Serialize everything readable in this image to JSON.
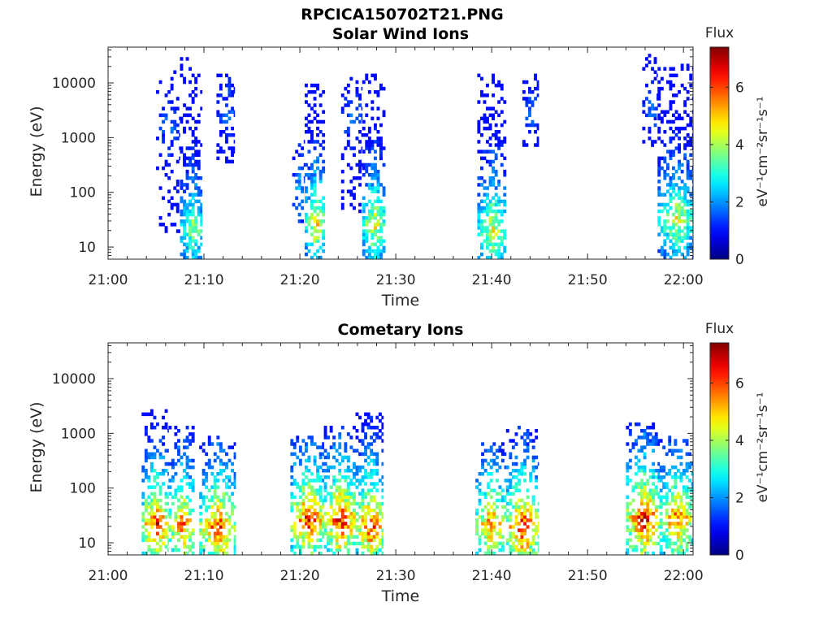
{
  "figure_title": "RPCICA150702T21.PNG",
  "chart_data": [
    {
      "type": "heatmap",
      "title": "Solar Wind Ions",
      "xlabel": "Time",
      "ylabel": "Energy (eV)",
      "x_ticks": [
        "21:00",
        "21:10",
        "21:20",
        "21:30",
        "21:40",
        "21:50",
        "22:00"
      ],
      "xlim_minutes": [
        0,
        61
      ],
      "y_scale": "log",
      "y_ticks": [
        10,
        100,
        1000,
        10000
      ],
      "y_tick_labels": [
        "10",
        "100",
        "1000",
        "10000"
      ],
      "ylim": [
        6,
        45000
      ],
      "colorbar": {
        "label": "Flux",
        "units": "eV⁻¹cm⁻²sr⁻¹s⁻¹",
        "range": [
          0,
          7.4
        ],
        "ticks": [
          0,
          2,
          4,
          6
        ],
        "colormap": "jet"
      },
      "bursts": [
        {
          "start_min": 5.0,
          "end_min": 7.5,
          "e_lo": 15,
          "e_hi": 16000,
          "peak_e": 1500,
          "peak_flux": 2.0,
          "density": 0.25
        },
        {
          "start_min": 7.5,
          "end_min": 9.8,
          "e_lo": 6,
          "e_hi": 28000,
          "peak_e": 20,
          "peak_flux": 4.3,
          "density": 0.75
        },
        {
          "start_min": 11.3,
          "end_min": 13.2,
          "e_lo": 300,
          "e_hi": 14000,
          "peak_e": 3000,
          "peak_flux": 2.0,
          "density": 0.35
        },
        {
          "start_min": 19.2,
          "end_min": 20.5,
          "e_lo": 25,
          "e_hi": 800,
          "peak_e": 100,
          "peak_flux": 2.5,
          "density": 0.3
        },
        {
          "start_min": 20.5,
          "end_min": 22.6,
          "e_lo": 6,
          "e_hi": 14000,
          "peak_e": 25,
          "peak_flux": 5.2,
          "density": 0.7
        },
        {
          "start_min": 24.3,
          "end_min": 26.5,
          "e_lo": 40,
          "e_hi": 12000,
          "peak_e": 2000,
          "peak_flux": 2.0,
          "density": 0.28
        },
        {
          "start_min": 26.5,
          "end_min": 28.9,
          "e_lo": 6,
          "e_hi": 14000,
          "peak_e": 25,
          "peak_flux": 5.0,
          "density": 0.7
        },
        {
          "start_min": 38.5,
          "end_min": 41.5,
          "e_lo": 6,
          "e_hi": 14000,
          "peak_e": 20,
          "peak_flux": 5.0,
          "density": 0.7
        },
        {
          "start_min": 43.2,
          "end_min": 44.9,
          "e_lo": 600,
          "e_hi": 14000,
          "peak_e": 3000,
          "peak_flux": 2.0,
          "density": 0.35
        },
        {
          "start_min": 55.7,
          "end_min": 57.3,
          "e_lo": 600,
          "e_hi": 30000,
          "peak_e": 3000,
          "peak_flux": 2.0,
          "density": 0.3
        },
        {
          "start_min": 57.3,
          "end_min": 61.0,
          "e_lo": 6,
          "e_hi": 20000,
          "peak_e": 30,
          "peak_flux": 4.8,
          "density": 0.7
        }
      ]
    },
    {
      "type": "heatmap",
      "title": "Cometary Ions",
      "xlabel": "Time",
      "ylabel": "Energy (eV)",
      "x_ticks": [
        "21:00",
        "21:10",
        "21:20",
        "21:30",
        "21:40",
        "21:50",
        "22:00"
      ],
      "xlim_minutes": [
        0,
        61
      ],
      "y_scale": "log",
      "y_ticks": [
        10,
        100,
        1000,
        10000
      ],
      "y_tick_labels": [
        "10",
        "100",
        "1000",
        "10000"
      ],
      "ylim": [
        6,
        45000
      ],
      "colorbar": {
        "label": "Flux",
        "units": "eV⁻¹cm⁻²sr⁻¹s⁻¹",
        "range": [
          0,
          7.4
        ],
        "ticks": [
          0,
          2,
          4,
          6
        ],
        "colormap": "jet"
      },
      "bursts": [
        {
          "start_min": 3.5,
          "end_min": 6.3,
          "e_lo": 6,
          "e_hi": 2500,
          "peak_e": 20,
          "peak_flux": 7.0,
          "density": 0.65
        },
        {
          "start_min": 6.3,
          "end_min": 9.0,
          "e_lo": 6,
          "e_hi": 1200,
          "peak_e": 20,
          "peak_flux": 6.5,
          "density": 0.6
        },
        {
          "start_min": 9.5,
          "end_min": 13.3,
          "e_lo": 6,
          "e_hi": 900,
          "peak_e": 18,
          "peak_flux": 6.8,
          "density": 0.6
        },
        {
          "start_min": 19.0,
          "end_min": 22.5,
          "e_lo": 6,
          "e_hi": 800,
          "peak_e": 25,
          "peak_flux": 7.0,
          "density": 0.7
        },
        {
          "start_min": 22.5,
          "end_min": 25.8,
          "e_lo": 6,
          "e_hi": 1300,
          "peak_e": 25,
          "peak_flux": 7.2,
          "density": 0.7
        },
        {
          "start_min": 25.8,
          "end_min": 28.7,
          "e_lo": 6,
          "e_hi": 2200,
          "peak_e": 20,
          "peak_flux": 7.0,
          "density": 0.65
        },
        {
          "start_min": 38.3,
          "end_min": 41.5,
          "e_lo": 6,
          "e_hi": 600,
          "peak_e": 20,
          "peak_flux": 6.5,
          "density": 0.6
        },
        {
          "start_min": 41.5,
          "end_min": 44.9,
          "e_lo": 6,
          "e_hi": 1200,
          "peak_e": 18,
          "peak_flux": 7.2,
          "density": 0.65
        },
        {
          "start_min": 54.0,
          "end_min": 57.5,
          "e_lo": 6,
          "e_hi": 1400,
          "peak_e": 25,
          "peak_flux": 7.3,
          "density": 0.7
        },
        {
          "start_min": 57.5,
          "end_min": 61.0,
          "e_lo": 6,
          "e_hi": 800,
          "peak_e": 25,
          "peak_flux": 6.5,
          "density": 0.65
        }
      ]
    }
  ]
}
